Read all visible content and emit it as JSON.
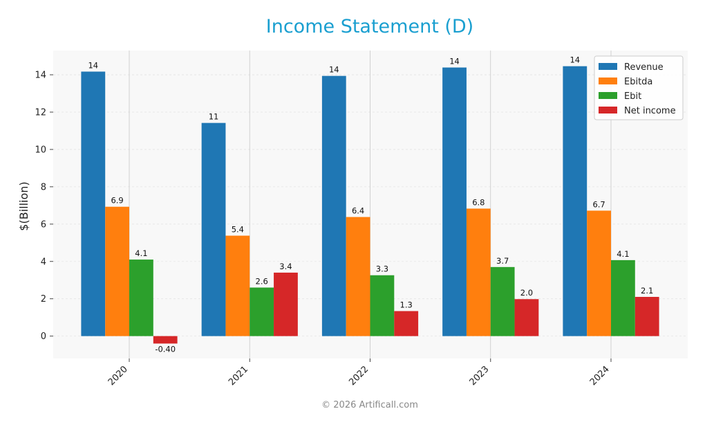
{
  "chart_data": {
    "type": "bar",
    "title": "Income Statement (D)",
    "xlabel": "",
    "ylabel": "$(Billion)",
    "categories": [
      "2020",
      "2021",
      "2022",
      "2023",
      "2024"
    ],
    "series": [
      {
        "name": "Revenue",
        "color": "#1f77b4",
        "values": [
          14.17,
          11.42,
          13.94,
          14.39,
          14.46
        ],
        "labels": [
          "14",
          "11",
          "14",
          "14",
          "14"
        ]
      },
      {
        "name": "Ebitda",
        "color": "#ff7f0e",
        "values": [
          6.93,
          5.38,
          6.38,
          6.83,
          6.72
        ],
        "labels": [
          "6.9",
          "5.4",
          "6.4",
          "6.8",
          "6.7"
        ]
      },
      {
        "name": "Ebit",
        "color": "#2ca02c",
        "values": [
          4.1,
          2.6,
          3.26,
          3.7,
          4.07
        ],
        "labels": [
          "4.1",
          "2.6",
          "3.3",
          "3.7",
          "4.1"
        ]
      },
      {
        "name": "Net income",
        "color": "#d62728",
        "values": [
          -0.4,
          3.4,
          1.34,
          1.98,
          2.1
        ],
        "labels": [
          "-0.40",
          "3.4",
          "1.3",
          "2.0",
          "2.1"
        ]
      }
    ],
    "ylim": [
      -1.2,
      15.3
    ],
    "yticks": [
      0,
      2,
      4,
      6,
      8,
      10,
      12,
      14
    ],
    "grid": true,
    "legend_position": "top-right"
  },
  "footer": "© 2026 Artificall.com"
}
